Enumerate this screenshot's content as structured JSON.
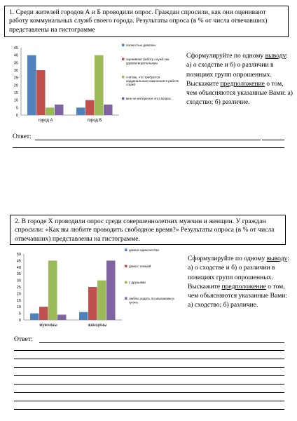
{
  "q1": {
    "text": "1. Среди жителей городов А и Б проводили опрос. Граждан спросили, как они оценивают работу коммунальных служб своего города. Результаты опроса (в % от числа отвечавших) представлены на гистограмме",
    "task": {
      "p1": "Сформулируйте по одному ",
      "u1": "выводу",
      "p2": ": а) о сходстве и б) о различии в позициях групп опрошенных. Выскажите ",
      "u2": "предположение",
      "p3": " о том, чем объясняются указанные Вами: а) сходство; б) различие."
    },
    "answer_label": "Ответ:"
  },
  "q2": {
    "text": "2. В городе Х проводили опрос среди совершеннолетних мужчин и женщин. У граждан спросили: «Как вы любите проводить свободное время?» Результаты опроса (в % от числа отвечавших) представлены на гистограмме.",
    "task": {
      "p1": "Сформулируйте по одному ",
      "u1": "выводу",
      "p2": ": а) о сходстве и б) о различии в позициях групп опрошенных. Выскажите ",
      "u2": "предположение",
      "p3": " о том, чем объясняются указанные Вами: а) сходство; б) различие."
    },
    "answer_label": "Ответ:"
  },
  "chart_data": [
    {
      "type": "bar",
      "categories": [
        "город А",
        "город Б"
      ],
      "ylim": [
        0,
        45
      ],
      "yticks": [
        0,
        5,
        10,
        15,
        20,
        25,
        30,
        35,
        40,
        45
      ],
      "grid": false,
      "legend_position": "right",
      "series": [
        {
          "name": "полностью доволен",
          "color": "#4f81bd",
          "values": [
            40,
            5
          ]
        },
        {
          "name": "оценивают работу служб как удовлетворительную",
          "color": "#c0504d",
          "values": [
            30,
            10
          ]
        },
        {
          "name": "считаю, что требуются кардинальные изменения в работе служб",
          "color": "#9bbb59",
          "values": [
            5,
            40
          ]
        },
        {
          "name": "мне не интересен этот вопрос",
          "color": "#8064a2",
          "values": [
            7,
            7
          ]
        }
      ]
    },
    {
      "type": "bar",
      "categories": [
        "мужчины",
        "женщины"
      ],
      "ylim": [
        0,
        50
      ],
      "yticks": [
        0,
        5,
        10,
        15,
        20,
        25,
        30,
        35,
        40,
        45,
        50
      ],
      "grid": false,
      "legend_position": "right",
      "series": [
        {
          "name": "дома в одиночестве",
          "color": "#4f81bd",
          "values": [
            5,
            6
          ]
        },
        {
          "name": "дома с семьёй",
          "color": "#c0504d",
          "values": [
            10,
            25
          ]
        },
        {
          "name": "с друзьями",
          "color": "#9bbb59",
          "values": [
            45,
            30
          ]
        },
        {
          "name": "люблю ходить по магазинам и гулять",
          "color": "#8064a2",
          "values": [
            4,
            45
          ]
        }
      ]
    }
  ]
}
